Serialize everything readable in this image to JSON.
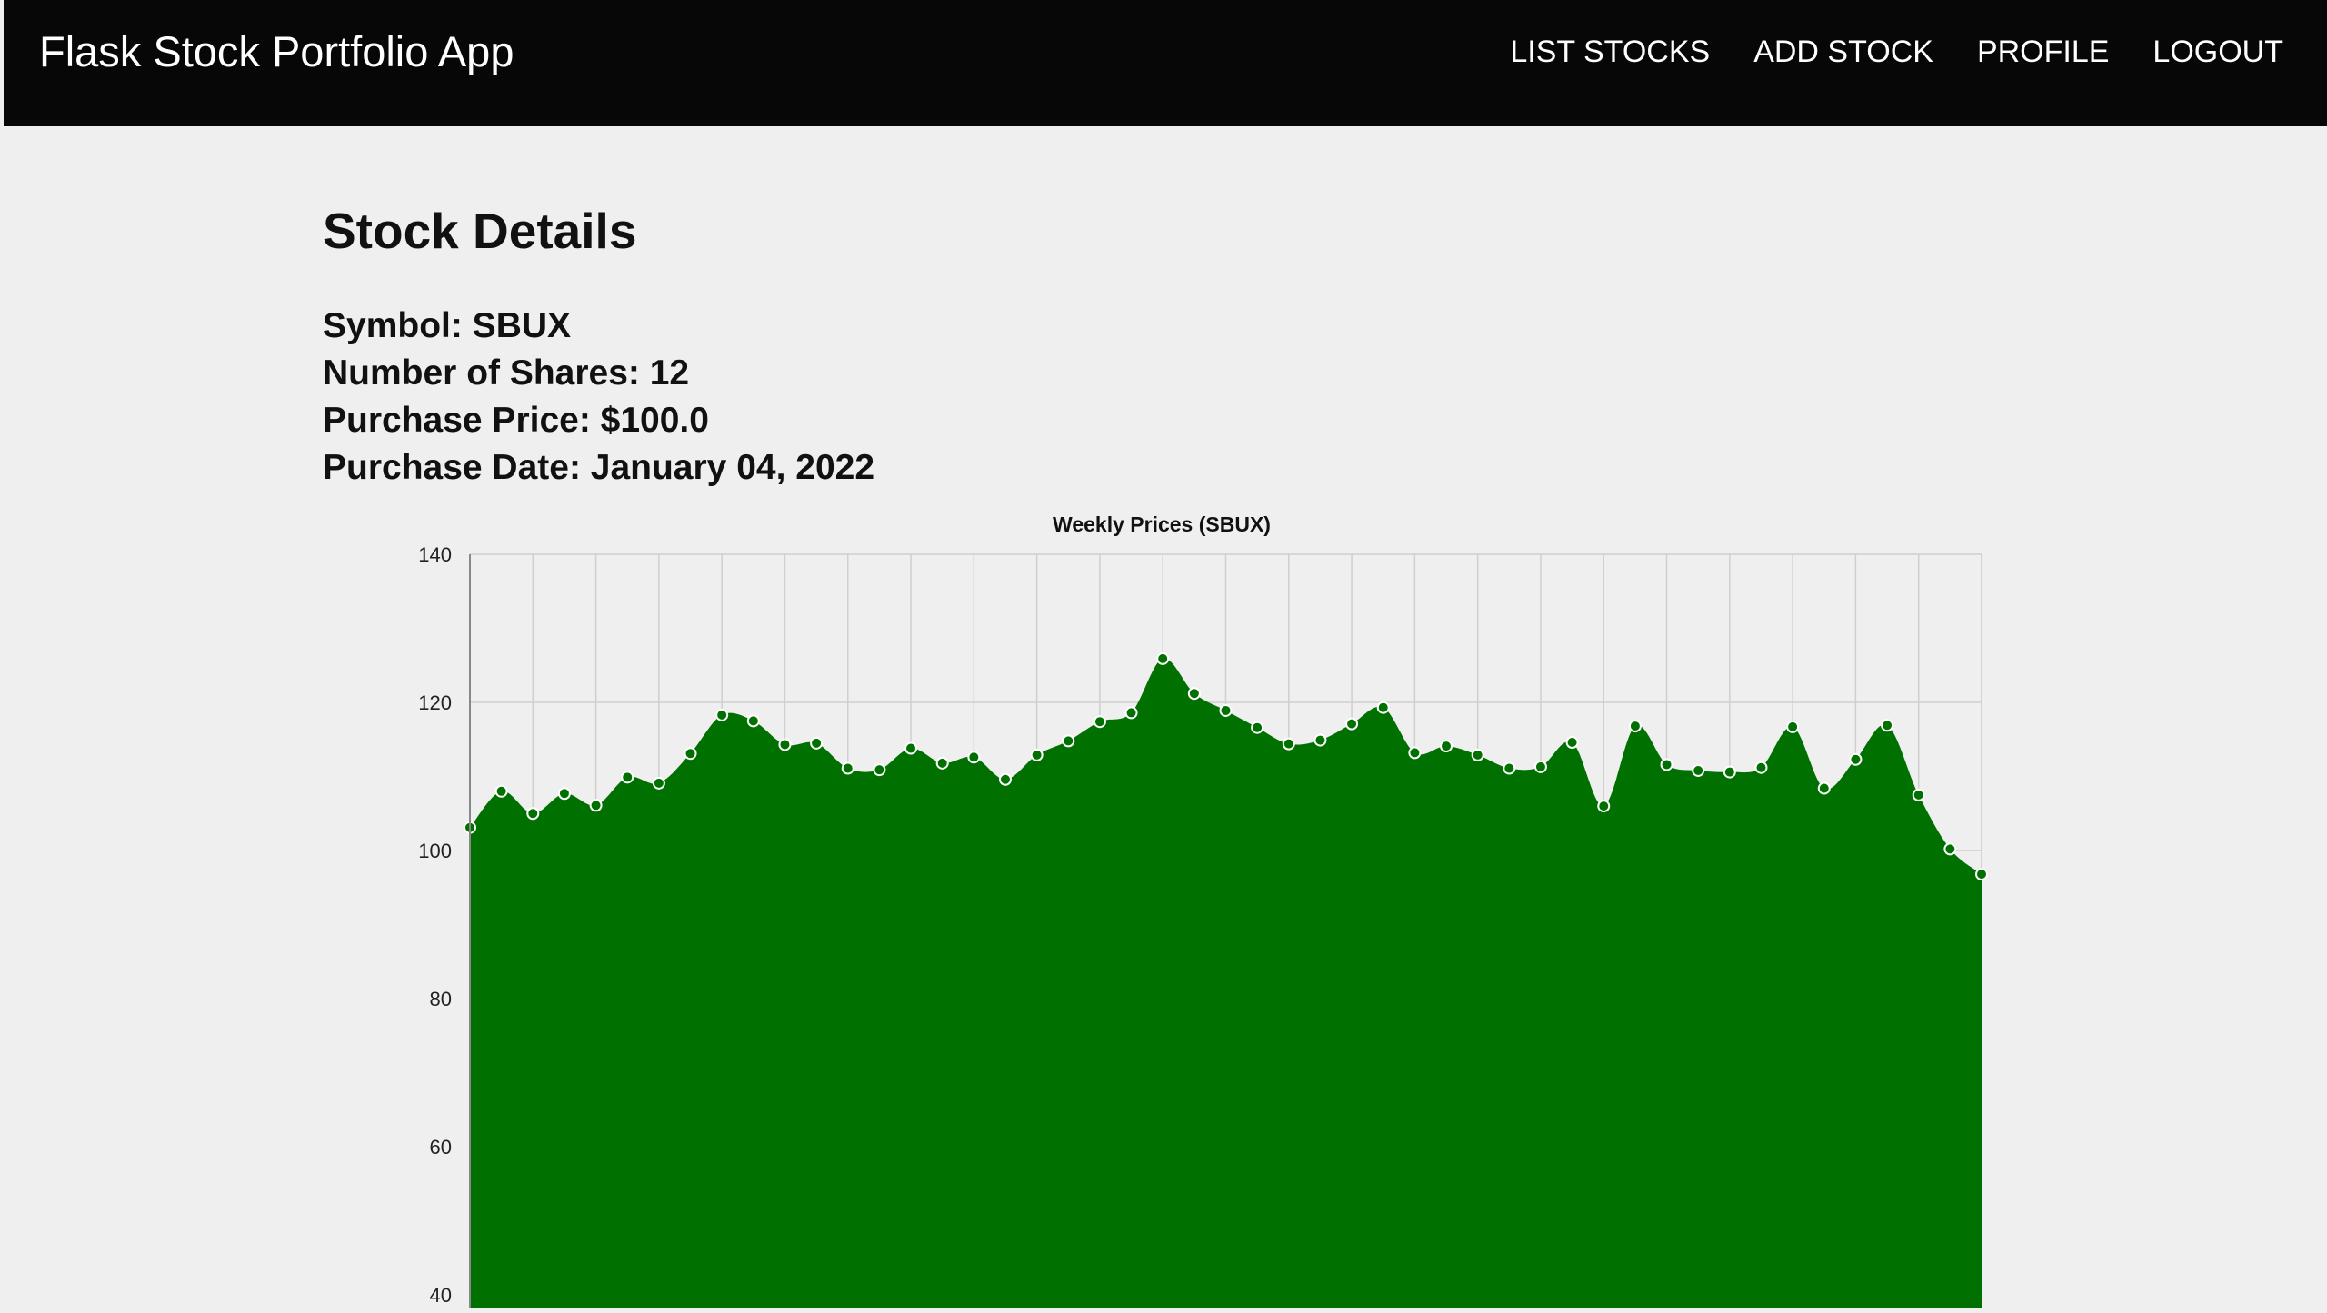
{
  "navbar": {
    "brand": "Flask Stock Portfolio App",
    "links": [
      "LIST STOCKS",
      "ADD STOCK",
      "PROFILE",
      "LOGOUT"
    ]
  },
  "page": {
    "title": "Stock Details"
  },
  "stock": {
    "symbol_line": "Symbol: SBUX",
    "shares_line": "Number of Shares: 12",
    "price_line": "Purchase Price: $100.0",
    "date_line": "Purchase Date: January 04, 2022"
  },
  "colors": {
    "navbar_bg": "#070707",
    "page_bg": "#efefef",
    "area_fill": "#007000",
    "point_fill": "#007000",
    "point_stroke": "#ffffff"
  },
  "chart_data": {
    "type": "area",
    "title": "Weekly Prices (SBUX)",
    "xlabel": "",
    "ylabel": "",
    "ylim": [
      40,
      140
    ],
    "yticks": [
      40,
      60,
      80,
      100,
      120,
      140
    ],
    "grid": true,
    "legend": "none",
    "series": [
      {
        "values": [
          103.1,
          108.0,
          105.0,
          107.7,
          106.1,
          109.9,
          109.1,
          113.1,
          118.3,
          117.5,
          114.3,
          114.5,
          111.1,
          110.9,
          113.8,
          111.8,
          112.6,
          109.6,
          112.9,
          114.8,
          117.4,
          118.6,
          125.9,
          121.2,
          118.9,
          116.6,
          114.4,
          114.9,
          117.1,
          119.3,
          113.2,
          114.1,
          112.9,
          111.1,
          111.3,
          114.6,
          106.0,
          116.8,
          111.6,
          110.8,
          110.6,
          111.2,
          116.7,
          108.4,
          112.3,
          116.9,
          107.5,
          100.2,
          96.8
        ]
      }
    ]
  }
}
